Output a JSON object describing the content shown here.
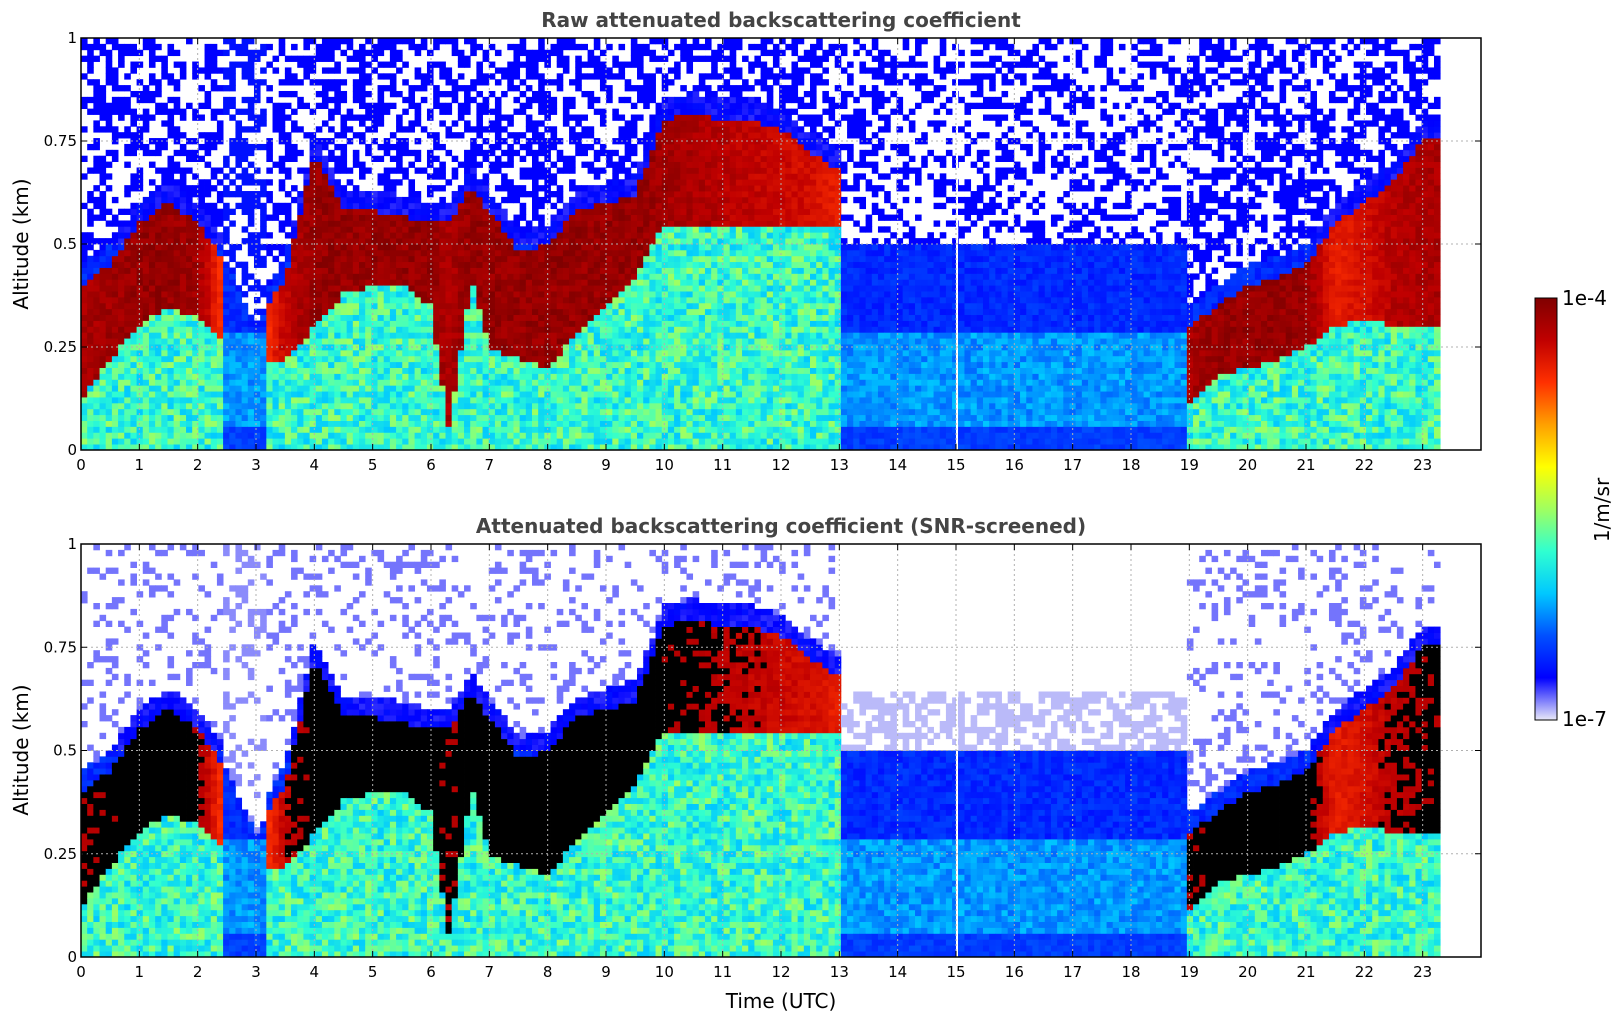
{
  "chart_data": [
    {
      "type": "heatmap",
      "title": "Raw attenuated backscattering coefficient",
      "xlabel": "",
      "ylabel": "Altitude (km)",
      "xlim": [
        0,
        24
      ],
      "ylim": [
        0,
        1
      ],
      "xticks": [
        "0",
        "1",
        "2",
        "3",
        "4",
        "5",
        "6",
        "7",
        "8",
        "9",
        "10",
        "11",
        "12",
        "13",
        "14",
        "15",
        "16",
        "17",
        "18",
        "19",
        "20",
        "21",
        "22",
        "23"
      ],
      "yticks": [
        "0",
        "0.25",
        "0.5",
        "0.75",
        "1"
      ],
      "data_end_hour": 23.3,
      "grid": true,
      "cloud_layer": [
        {
          "t": 0.0,
          "base": 0.12,
          "top": 0.4,
          "intensity": 0.9
        },
        {
          "t": 0.5,
          "base": 0.22,
          "top": 0.45,
          "intensity": 0.95
        },
        {
          "t": 1.0,
          "base": 0.3,
          "top": 0.55,
          "intensity": 1.0
        },
        {
          "t": 1.5,
          "base": 0.35,
          "top": 0.6,
          "intensity": 1.0
        },
        {
          "t": 2.0,
          "base": 0.32,
          "top": 0.55,
          "intensity": 0.95
        },
        {
          "t": 2.5,
          "base": 0.25,
          "top": 0.45,
          "intensity": 0.4
        },
        {
          "t": 3.0,
          "base": 0.2,
          "top": 0.3,
          "intensity": 0.3
        },
        {
          "t": 3.5,
          "base": 0.22,
          "top": 0.42,
          "intensity": 0.8
        },
        {
          "t": 4.0,
          "base": 0.3,
          "top": 0.72,
          "intensity": 1.0
        },
        {
          "t": 4.5,
          "base": 0.38,
          "top": 0.58,
          "intensity": 1.0
        },
        {
          "t": 5.0,
          "base": 0.4,
          "top": 0.58,
          "intensity": 1.0
        },
        {
          "t": 5.5,
          "base": 0.4,
          "top": 0.57,
          "intensity": 1.0
        },
        {
          "t": 6.0,
          "base": 0.35,
          "top": 0.55,
          "intensity": 1.0
        },
        {
          "t": 6.3,
          "base": 0.05,
          "top": 0.55,
          "intensity": 0.9
        },
        {
          "t": 6.7,
          "base": 0.42,
          "top": 0.64,
          "intensity": 1.0
        },
        {
          "t": 7.0,
          "base": 0.25,
          "top": 0.58,
          "intensity": 1.0
        },
        {
          "t": 7.5,
          "base": 0.22,
          "top": 0.48,
          "intensity": 1.0
        },
        {
          "t": 8.0,
          "base": 0.2,
          "top": 0.5,
          "intensity": 1.0
        },
        {
          "t": 8.5,
          "base": 0.28,
          "top": 0.58,
          "intensity": 1.0
        },
        {
          "t": 9.0,
          "base": 0.35,
          "top": 0.6,
          "intensity": 1.0
        },
        {
          "t": 9.5,
          "base": 0.42,
          "top": 0.62,
          "intensity": 1.0
        },
        {
          "t": 10.0,
          "base": 0.55,
          "top": 0.8,
          "intensity": 0.95
        },
        {
          "t": 10.5,
          "base": 0.55,
          "top": 0.82,
          "intensity": 0.9
        },
        {
          "t": 11.0,
          "base": 0.55,
          "top": 0.8,
          "intensity": 0.85
        },
        {
          "t": 11.5,
          "base": 0.55,
          "top": 0.8,
          "intensity": 0.8
        },
        {
          "t": 12.0,
          "base": 0.55,
          "top": 0.78,
          "intensity": 0.75
        },
        {
          "t": 12.5,
          "base": 0.55,
          "top": 0.72,
          "intensity": 0.7
        },
        {
          "t": 13.0,
          "base": 0.55,
          "top": 0.68,
          "intensity": 0.6
        },
        {
          "t": 19.0,
          "base": 0.12,
          "top": 0.3,
          "intensity": 0.9
        },
        {
          "t": 19.5,
          "base": 0.18,
          "top": 0.35,
          "intensity": 1.0
        },
        {
          "t": 20.0,
          "base": 0.2,
          "top": 0.4,
          "intensity": 1.0
        },
        {
          "t": 20.5,
          "base": 0.22,
          "top": 0.42,
          "intensity": 1.0
        },
        {
          "t": 21.0,
          "base": 0.25,
          "top": 0.45,
          "intensity": 1.0
        },
        {
          "t": 21.5,
          "base": 0.3,
          "top": 0.55,
          "intensity": 0.6
        },
        {
          "t": 22.0,
          "base": 0.32,
          "top": 0.6,
          "intensity": 0.7
        },
        {
          "t": 22.5,
          "base": 0.3,
          "top": 0.65,
          "intensity": 0.85
        },
        {
          "t": 23.0,
          "base": 0.3,
          "top": 0.75,
          "intensity": 0.9
        }
      ]
    },
    {
      "type": "heatmap",
      "title": "Attenuated backscattering coefficient (SNR-screened)",
      "xlabel": "Time (UTC)",
      "ylabel": "Altitude (km)",
      "xlim": [
        0,
        24
      ],
      "ylim": [
        0,
        1
      ],
      "xticks": [
        "0",
        "1",
        "2",
        "3",
        "4",
        "5",
        "6",
        "7",
        "8",
        "9",
        "10",
        "11",
        "12",
        "13",
        "14",
        "15",
        "16",
        "17",
        "18",
        "19",
        "20",
        "21",
        "22",
        "23"
      ],
      "yticks": [
        "0",
        "0.25",
        "0.5",
        "0.75",
        "1"
      ],
      "data_end_hour": 23.3,
      "grid": true,
      "cloud_core_color": "#000000"
    }
  ],
  "colorbar": {
    "label": "1/m/sr",
    "max_label": "1e-4",
    "min_label": "1e-7",
    "colormap": [
      "#e8e8f8",
      "#0000ff",
      "#0050ff",
      "#00c8ff",
      "#30ffd0",
      "#a0ff60",
      "#ffff00",
      "#ffa000",
      "#ff3000",
      "#c00000",
      "#800000"
    ]
  }
}
